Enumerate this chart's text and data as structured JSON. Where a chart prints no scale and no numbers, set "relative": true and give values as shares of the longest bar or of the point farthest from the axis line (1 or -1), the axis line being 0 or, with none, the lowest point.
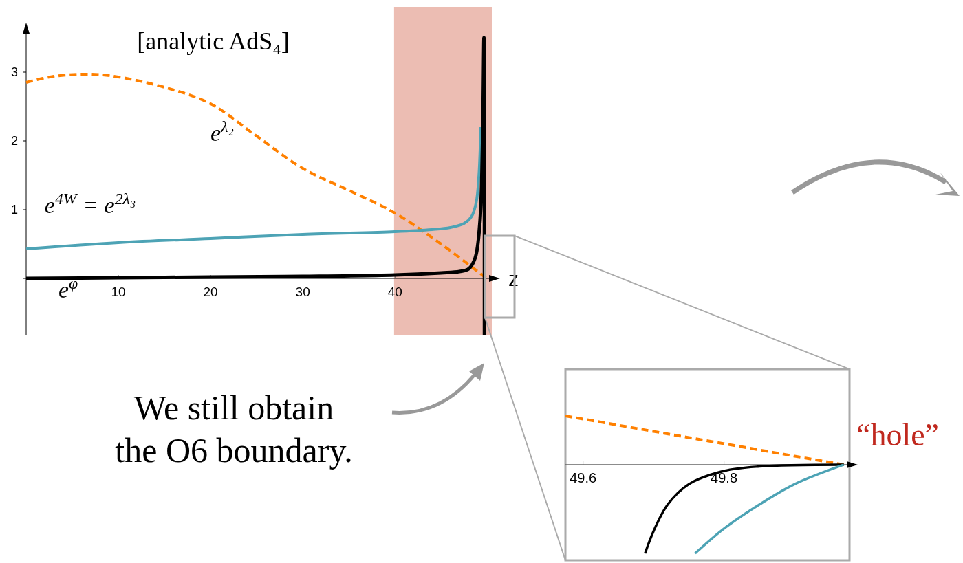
{
  "chart_data": [
    {
      "type": "line",
      "title": "[analytic AdS₄]",
      "xlabel": "z",
      "xlim": [
        0,
        50.5
      ],
      "ylim": [
        -0.82,
        3.6
      ],
      "xticks": [
        10,
        20,
        30,
        40
      ],
      "yticks": [
        1,
        2,
        3
      ],
      "marker": "none",
      "bands": [
        {
          "axis": "x",
          "from": 39.9,
          "to": 50.5,
          "color": "#ecbdb3"
        }
      ],
      "annotations": [
        "We still obtain the O6 boundary."
      ],
      "series": [
        {
          "name": "e$^{λ₂}$",
          "color": "#ff8000",
          "line_style": "dashed",
          "x": [
            0,
            3,
            7,
            10,
            15,
            20,
            25,
            30,
            35,
            40,
            45,
            49.85
          ],
          "values": [
            2.85,
            2.94,
            2.97,
            2.93,
            2.78,
            2.54,
            2.07,
            1.6,
            1.28,
            0.95,
            0.5,
            0.01
          ]
        },
        {
          "name": "e$^{4W}$ = e$^{2λ₃}$",
          "color": "#4da3b5",
          "line_style": "solid",
          "x": [
            0,
            10,
            20,
            30,
            40,
            44,
            46,
            47.5,
            48.3,
            48.8,
            49.1,
            49.3,
            49.4,
            49.75,
            49.75
          ],
          "values": [
            0.43,
            0.52,
            0.58,
            0.64,
            0.68,
            0.71,
            0.74,
            0.8,
            0.9,
            1.1,
            1.5,
            2.2,
            null,
            -0.05,
            -0.55
          ]
        },
        {
          "name": "e$^{φ}$",
          "color": "#000000",
          "line_style": "solid",
          "x": [
            0,
            10,
            20,
            30,
            40,
            45,
            47,
            48,
            48.7,
            49.2,
            49.5,
            49.65,
            49.7
          ],
          "values": [
            0,
            0.01,
            0.02,
            0.03,
            0.05,
            0.08,
            0.1,
            0.14,
            0.3,
            0.8,
            2,
            3.5,
            -0.82
          ]
        }
      ]
    },
    {
      "type": "line",
      "relative": true,
      "xlim": [
        49.575,
        49.978
      ],
      "xticks": [
        49.6,
        49.8
      ],
      "marker": "none",
      "annotations": [
        "“hole”"
      ],
      "series": [
        {
          "color": "#ff8000",
          "line_style": "dashed",
          "x": [
            49.575,
            49.97
          ],
          "values": [
            0.55,
            0
          ]
        },
        {
          "color": "#000000",
          "line_style": "solid",
          "x": [
            49.688,
            49.7,
            49.72,
            49.75,
            49.8,
            49.85,
            49.97
          ],
          "values": [
            -1,
            -0.75,
            -0.45,
            -0.22,
            -0.07,
            -0.02,
            0
          ]
        },
        {
          "color": "#4da3b5",
          "line_style": "solid",
          "x": [
            49.759,
            49.8,
            49.85,
            49.9,
            49.97
          ],
          "values": [
            -1,
            -0.72,
            -0.45,
            -0.22,
            0
          ]
        }
      ]
    }
  ]
}
